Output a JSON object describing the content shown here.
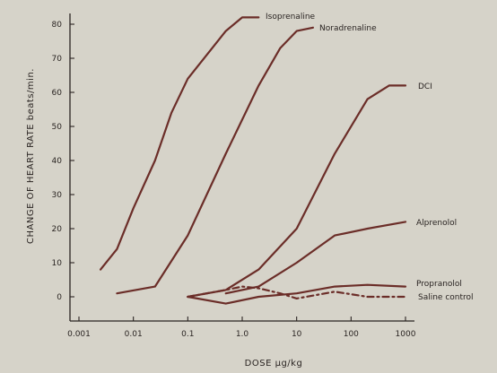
{
  "chart_data": {
    "type": "line",
    "xlabel": "DOSE µg/kg",
    "ylabel": "CHANGE OF HEART RATE  beats/min.",
    "x_scale": "log",
    "xlim": [
      0.001,
      1000
    ],
    "ylim": [
      -7,
      85
    ],
    "x_ticks": [
      0.001,
      0.01,
      0.1,
      1,
      10,
      100,
      1000
    ],
    "x_tick_labels": [
      "0.001",
      "0.01",
      "0.1",
      "1.0",
      "10",
      "100",
      "1000"
    ],
    "y_ticks": [
      0,
      10,
      20,
      30,
      40,
      50,
      60,
      70,
      80
    ],
    "y_tick_labels": [
      "0",
      "10",
      "20",
      "30",
      "40",
      "50",
      "60",
      "70",
      "80"
    ],
    "grid": false,
    "line_color": "#6b2d28",
    "series": [
      {
        "name": "Isoprenaline",
        "style": "solid",
        "x": [
          0.0025,
          0.005,
          0.01,
          0.025,
          0.05,
          0.1,
          0.25,
          0.5,
          1,
          2
        ],
        "y": [
          8,
          14,
          26,
          40,
          54,
          64,
          72,
          78,
          82,
          82
        ]
      },
      {
        "name": "Noradrenaline",
        "style": "solid",
        "x": [
          0.005,
          0.025,
          0.1,
          0.5,
          1,
          2,
          5,
          10,
          20
        ],
        "y": [
          1,
          3,
          18,
          42,
          52,
          62,
          73,
          78,
          79
        ]
      },
      {
        "name": "DCI",
        "style": "solid",
        "x": [
          0.1,
          0.5,
          2,
          10,
          50,
          200,
          500,
          1000
        ],
        "y": [
          0,
          2,
          8,
          20,
          42,
          58,
          62,
          62
        ]
      },
      {
        "name": "Alprenolol",
        "style": "solid",
        "x": [
          0.5,
          2,
          10,
          50,
          200,
          1000
        ],
        "y": [
          1,
          3,
          10,
          18,
          20,
          22
        ]
      },
      {
        "name": "Propranolol",
        "style": "solid",
        "x": [
          0.1,
          0.5,
          2,
          10,
          50,
          200,
          1000
        ],
        "y": [
          0,
          -2,
          0,
          1,
          3,
          3.5,
          3
        ]
      },
      {
        "name": "Saline control",
        "style": "dashed",
        "x": [
          0.1,
          0.5,
          1,
          2,
          5,
          10,
          50,
          200,
          1000
        ],
        "y": [
          0,
          2,
          3,
          2.5,
          1,
          -0.5,
          1.5,
          0,
          0
        ]
      }
    ]
  }
}
